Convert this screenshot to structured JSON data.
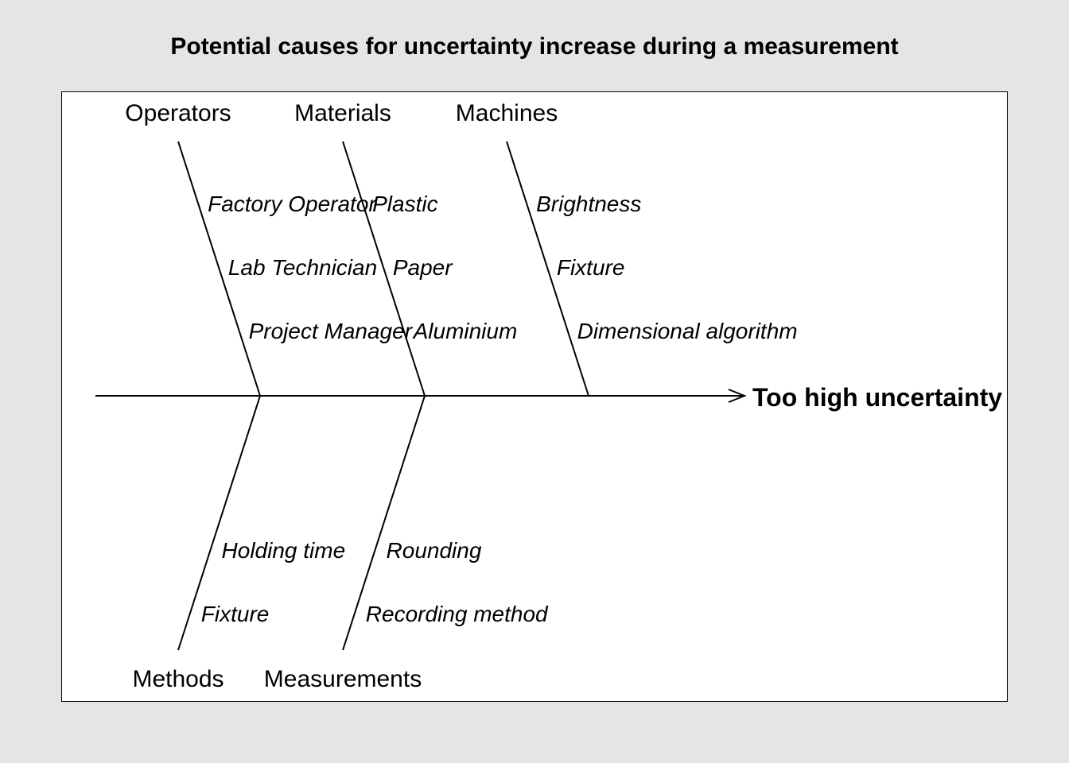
{
  "title": "Potential causes for uncertainty increase during a measurement",
  "effect": "Too high uncertainty",
  "colors": {
    "page_background": "#e5e5e5",
    "panel_background": "#ffffff",
    "line": "#000000"
  },
  "categories_top": [
    {
      "name": "Operators",
      "causes": [
        "Factory Operator",
        "Lab Technician",
        "Project Manager"
      ]
    },
    {
      "name": "Materials",
      "causes": [
        "Plastic",
        "Paper",
        "Aluminium"
      ]
    },
    {
      "name": "Machines",
      "causes": [
        "Brightness",
        "Fixture",
        "Dimensional algorithm"
      ]
    }
  ],
  "categories_bottom": [
    {
      "name": "Methods",
      "causes": [
        "Holding time",
        "Fixture"
      ]
    },
    {
      "name": "Measurements",
      "causes": [
        "Rounding",
        "Recording method"
      ]
    }
  ]
}
